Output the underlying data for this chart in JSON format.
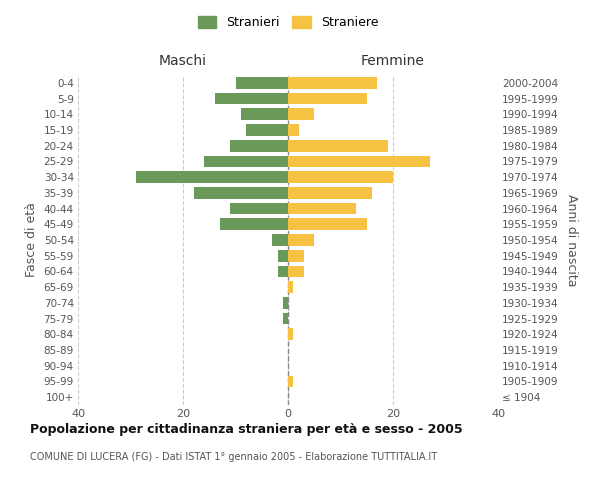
{
  "age_groups": [
    "100+",
    "95-99",
    "90-94",
    "85-89",
    "80-84",
    "75-79",
    "70-74",
    "65-69",
    "60-64",
    "55-59",
    "50-54",
    "45-49",
    "40-44",
    "35-39",
    "30-34",
    "25-29",
    "20-24",
    "15-19",
    "10-14",
    "5-9",
    "0-4"
  ],
  "birth_years": [
    "≤ 1904",
    "1905-1909",
    "1910-1914",
    "1915-1919",
    "1920-1924",
    "1925-1929",
    "1930-1934",
    "1935-1939",
    "1940-1944",
    "1945-1949",
    "1950-1954",
    "1955-1959",
    "1960-1964",
    "1965-1969",
    "1970-1974",
    "1975-1979",
    "1980-1984",
    "1985-1989",
    "1990-1994",
    "1995-1999",
    "2000-2004"
  ],
  "maschi": [
    0,
    0,
    0,
    0,
    0,
    1,
    1,
    0,
    2,
    2,
    3,
    13,
    11,
    18,
    29,
    16,
    11,
    8,
    9,
    14,
    10
  ],
  "femmine": [
    0,
    1,
    0,
    0,
    1,
    0,
    0,
    1,
    3,
    3,
    5,
    15,
    13,
    16,
    20,
    27,
    19,
    2,
    5,
    15,
    17
  ],
  "maschi_color": "#6a9a5a",
  "femmine_color": "#f5c242",
  "background_color": "#ffffff",
  "grid_color": "#cccccc",
  "title": "Popolazione per cittadinanza straniera per età e sesso - 2005",
  "subtitle": "COMUNE DI LUCERA (FG) - Dati ISTAT 1° gennaio 2005 - Elaborazione TUTTITALIA.IT",
  "ylabel_left": "Fasce di età",
  "ylabel_right": "Anni di nascita",
  "xlabel_maschi": "Maschi",
  "xlabel_femmine": "Femmine",
  "legend_maschi": "Stranieri",
  "legend_femmine": "Straniere",
  "xlim": 40,
  "bar_height": 0.75
}
